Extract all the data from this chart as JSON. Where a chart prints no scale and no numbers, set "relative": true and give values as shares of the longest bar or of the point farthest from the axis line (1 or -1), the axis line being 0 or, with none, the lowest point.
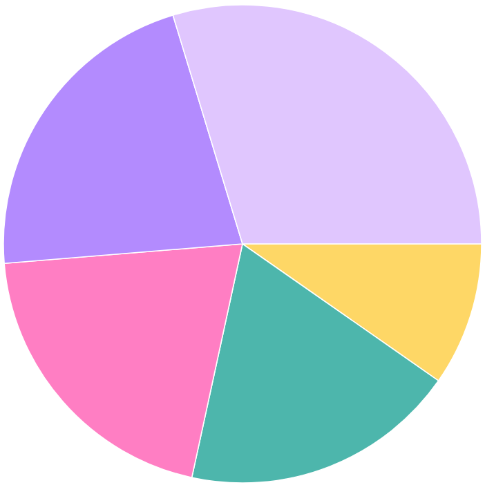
{
  "chart_data": {
    "type": "pie",
    "relative": true,
    "categories": [
      null,
      null,
      null,
      null,
      null
    ],
    "values": [
      9.7,
      18.7,
      20.3,
      21.6,
      29.7
    ],
    "colors": [
      "#fed766",
      "#4db6ac",
      "#ff7ec3",
      "#b38bfe",
      "#e0c6fe"
    ]
  }
}
